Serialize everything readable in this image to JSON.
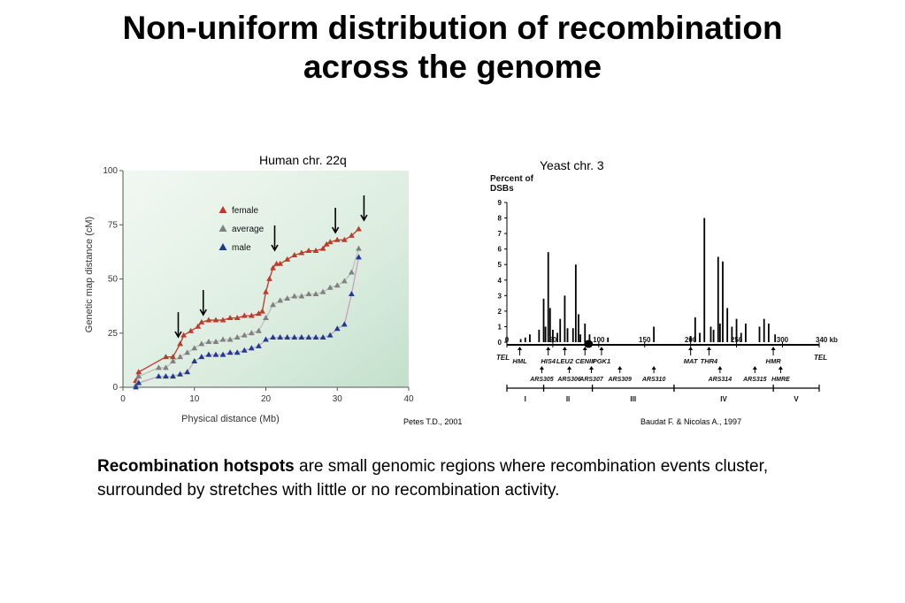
{
  "slide": {
    "title_line1": "Non-uniform distribution of recombination",
    "title_line2": "across the genome"
  },
  "body": {
    "bold": "Recombination hotspots",
    "rest": " are small genomic regions where recombination events cluster, surrounded by stretches with little or no recombination activity."
  },
  "chart_data": [
    {
      "type": "line",
      "title": "Human chr. 22q",
      "xlabel": "Physical distance (Mb)",
      "ylabel": "Genetic map distance (cM)",
      "xlim": [
        0,
        40
      ],
      "ylim": [
        0,
        100
      ],
      "x_ticks": [
        0,
        10,
        20,
        30,
        40
      ],
      "y_ticks": [
        0,
        25,
        50,
        75,
        100
      ],
      "grid": false,
      "legend_position": "top-left",
      "citation": "Petes T.D., 2001",
      "colors": {
        "female": "#c0392b",
        "average": "#808080",
        "male": "#1f3a93",
        "background": "#e3f0e6"
      },
      "series": [
        {
          "name": "female",
          "marker": "triangle",
          "x": [
            1.8,
            2.2,
            6,
            7,
            8,
            8.5,
            9.5,
            10.5,
            11,
            12,
            13,
            14,
            15,
            16,
            17,
            18,
            19,
            19.5,
            20,
            20.5,
            21,
            21.5,
            22,
            23,
            24,
            25,
            26,
            27,
            28,
            28.5,
            29,
            30,
            31,
            32,
            33
          ],
          "y": [
            3,
            7,
            14,
            14,
            20,
            24,
            26,
            28,
            30,
            31,
            31,
            31,
            32,
            32,
            33,
            33,
            34,
            35,
            44,
            50,
            55,
            57,
            57,
            59,
            61,
            62,
            63,
            63,
            64,
            66,
            67,
            68,
            68,
            70,
            73
          ]
        },
        {
          "name": "average",
          "marker": "triangle",
          "x": [
            1.8,
            2.2,
            5,
            6,
            7,
            8,
            9,
            10,
            11,
            12,
            13,
            14,
            15,
            16,
            17,
            18,
            19,
            20,
            21,
            22,
            23,
            24,
            25,
            26,
            27,
            28,
            29,
            30,
            31,
            32,
            33
          ],
          "y": [
            1,
            5,
            9,
            9,
            12,
            14,
            16,
            18,
            20,
            21,
            21,
            22,
            22,
            23,
            24,
            25,
            26,
            32,
            38,
            40,
            41,
            42,
            42,
            43,
            43,
            44,
            46,
            47,
            49,
            53,
            64
          ]
        },
        {
          "name": "male",
          "marker": "triangle",
          "x": [
            1.8,
            2.2,
            5,
            6,
            7,
            8,
            9,
            10,
            11,
            12,
            13,
            14,
            15,
            16,
            17,
            18,
            19,
            20,
            21,
            22,
            23,
            24,
            25,
            26,
            27,
            28,
            29,
            30,
            31,
            32,
            33
          ],
          "y": [
            0,
            2,
            5,
            5,
            5,
            6,
            7,
            12,
            14,
            15,
            15,
            15,
            16,
            16,
            17,
            18,
            19,
            22,
            23,
            23,
            23,
            23,
            23,
            23,
            23,
            23,
            24,
            27,
            29,
            43,
            60
          ]
        }
      ],
      "arrows_x_mb": [
        6.5,
        10,
        20,
        28.5,
        32.5
      ]
    },
    {
      "type": "bar",
      "title": "Yeast chr. 3",
      "ylabel": "Percent of DSBs",
      "xlabel": "kb",
      "ylim": [
        0,
        9
      ],
      "y_ticks": [
        0,
        1,
        2,
        3,
        4,
        5,
        6,
        7,
        8,
        9
      ],
      "x_ticks": [
        0,
        50,
        100,
        150,
        200,
        250,
        300,
        340
      ],
      "xlim": [
        0,
        340
      ],
      "citation": "Baudat F. & Nicolas A., 1997",
      "positions_kb": [
        15,
        20,
        25,
        35,
        40,
        42,
        45,
        47,
        50,
        55,
        58,
        63,
        66,
        72,
        75,
        78,
        80,
        85,
        90,
        110,
        160,
        200,
        205,
        210,
        215,
        222,
        225,
        230,
        232,
        235,
        240,
        245,
        250,
        255,
        260,
        275,
        280,
        285,
        292
      ],
      "values": [
        0.2,
        0.3,
        0.5,
        0.8,
        2.8,
        1,
        5.8,
        2.2,
        0.8,
        0.6,
        1.5,
        3,
        0.9,
        0.9,
        5,
        1.8,
        0.5,
        1.2,
        0.5,
        0.3,
        1,
        0.4,
        1.6,
        0.6,
        8,
        1,
        0.8,
        5.5,
        1.2,
        5.2,
        2.2,
        1,
        1.5,
        0.6,
        1.2,
        1,
        1.5,
        1.2,
        0.5
      ],
      "left_tel_label": "TEL",
      "right_tel_label": "TEL",
      "genes": [
        {
          "label": "HML",
          "kb": 14,
          "side": "above"
        },
        {
          "label": "HIS4",
          "kb": 45,
          "side": "above"
        },
        {
          "label": "LEU2",
          "kb": 63,
          "side": "above"
        },
        {
          "label": "CENIII",
          "kb": 85,
          "side": "above"
        },
        {
          "label": "PGK1",
          "kb": 103,
          "side": "above"
        },
        {
          "label": "MAT",
          "kb": 200,
          "side": "above"
        },
        {
          "label": "THR4",
          "kb": 220,
          "side": "above"
        },
        {
          "label": "HMR",
          "kb": 290,
          "side": "above"
        }
      ],
      "ars": [
        {
          "label": "ARS305",
          "kb": 38
        },
        {
          "label": "ARS306",
          "kb": 68
        },
        {
          "label": "ARS307",
          "kb": 92
        },
        {
          "label": "ARS309",
          "kb": 123
        },
        {
          "label": "ARS310",
          "kb": 160
        },
        {
          "label": "ARS314",
          "kb": 232
        },
        {
          "label": "ARS315",
          "kb": 270
        },
        {
          "label": "HMRE",
          "kb": 298
        }
      ],
      "segments": [
        {
          "label": "I",
          "start": 0,
          "end": 40
        },
        {
          "label": "II",
          "start": 40,
          "end": 93
        },
        {
          "label": "III",
          "start": 93,
          "end": 182
        },
        {
          "label": "IV",
          "start": 182,
          "end": 290
        },
        {
          "label": "V",
          "start": 290,
          "end": 340
        }
      ],
      "kb_unit_label": "340 kb"
    }
  ]
}
